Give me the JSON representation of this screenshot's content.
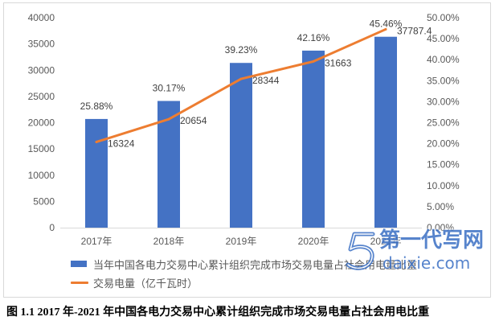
{
  "chart_data": {
    "type": "bar",
    "categories": [
      "2017年",
      "2018年",
      "2019年",
      "2020年",
      "2021年"
    ],
    "series": [
      {
        "name": "当年中国各电力交易中心累计组织完成市场交易电量占社会用电量比重",
        "type": "bar",
        "axis": "right",
        "color": "#4472C4",
        "values": [
          25.88,
          30.17,
          39.23,
          42.16,
          45.46
        ],
        "labels": [
          "25.88%",
          "30.17%",
          "39.23%",
          "42.16%",
          "45.46%"
        ]
      },
      {
        "name": "交易电量（亿千瓦时）",
        "type": "line",
        "axis": "left",
        "color": "#ED7D31",
        "values": [
          16324,
          20654,
          28344,
          31663,
          37787.4
        ],
        "labels": [
          "16324",
          "20654",
          "28344",
          "31663",
          "37787.4"
        ]
      }
    ],
    "y_left": {
      "ylim": [
        0,
        40000
      ],
      "ticks": [
        "0",
        "5000",
        "10000",
        "15000",
        "20000",
        "25000",
        "30000",
        "35000",
        "40000"
      ]
    },
    "y_right": {
      "ylim": [
        0,
        50
      ],
      "ticks": [
        "0.00%",
        "5.00%",
        "10.00%",
        "15.00%",
        "20.00%",
        "25.00%",
        "30.00%",
        "35.00%",
        "40.00%",
        "45.00%",
        "50.00%"
      ]
    },
    "grid": false,
    "legend": "bottom"
  },
  "caption": "图 1.1 2017 年-2021 年中国各电力交易中心累计组织完成市场交易电量占社会用电比重",
  "watermark": {
    "logo_icon": "daixie-logo-icon",
    "text": "第一代写网",
    "subtext": "daixie.com",
    "color": "#3A6FC4"
  }
}
